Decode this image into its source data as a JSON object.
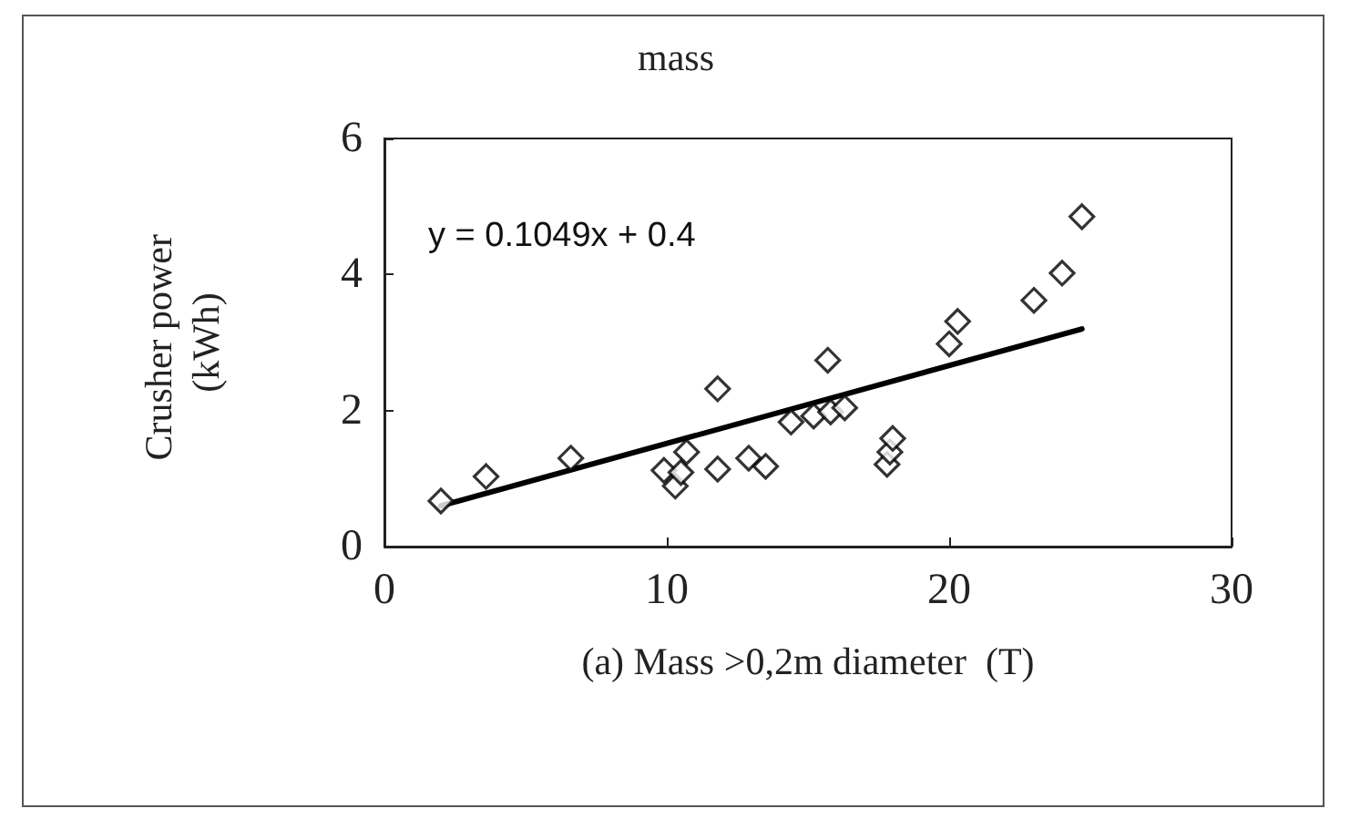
{
  "chart_data": {
    "type": "scatter",
    "title": "mass",
    "xlabel": "(a) Mass >0,2m diameter  (T)",
    "ylabel": "Crusher power (kWh)",
    "annotations": [
      "y = 0.1049x + 0.4"
    ],
    "xlim": [
      0,
      30
    ],
    "xticks": [
      0,
      10,
      20,
      30
    ],
    "ylim": [
      0,
      6
    ],
    "yticks": [
      0,
      2,
      4,
      6
    ],
    "grid": false,
    "marker": "diamond",
    "series": [
      {
        "color": "#000000",
        "x": [
          2.0,
          3.6,
          6.6,
          9.9,
          10.3,
          10.5,
          10.7,
          11.8,
          11.8,
          12.9,
          13.5,
          14.4,
          15.2,
          15.7,
          15.8,
          16.3,
          17.8,
          17.9,
          18.0,
          20.0,
          20.3,
          23.0,
          24.0,
          24.7
        ],
        "values": [
          0.67,
          1.03,
          1.3,
          1.12,
          0.89,
          1.09,
          1.39,
          2.32,
          1.14,
          1.3,
          1.18,
          1.83,
          1.92,
          2.74,
          1.98,
          2.04,
          1.21,
          1.39,
          1.59,
          2.98,
          3.31,
          3.62,
          4.02,
          4.85
        ]
      },
      {
        "type": "line",
        "color": "#000000",
        "marker": "none",
        "line_style": "solid",
        "x": [
          2.0,
          24.7
        ],
        "values": [
          0.6,
          3.2
        ]
      }
    ]
  }
}
